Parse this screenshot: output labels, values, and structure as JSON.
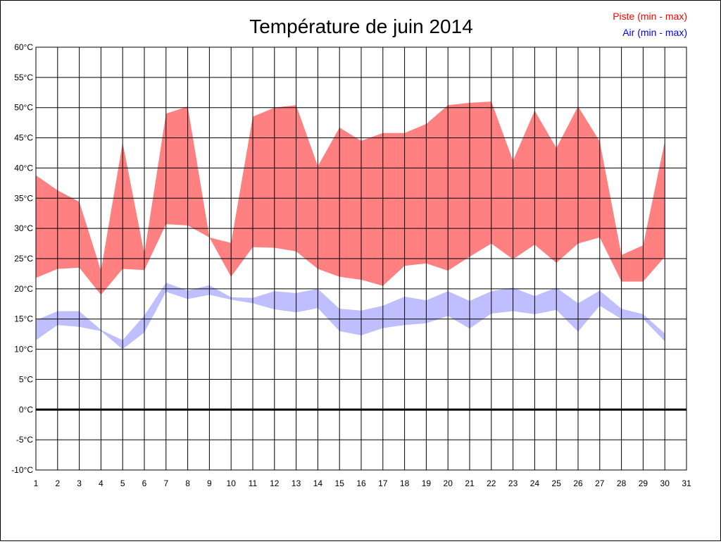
{
  "chart_data": {
    "type": "area",
    "title": "Température de juin 2014",
    "xlabel": "",
    "ylabel": "",
    "unit": "°C",
    "x": [
      1,
      2,
      3,
      4,
      5,
      6,
      7,
      8,
      9,
      10,
      11,
      12,
      13,
      14,
      15,
      16,
      17,
      18,
      19,
      20,
      21,
      22,
      23,
      24,
      25,
      26,
      27,
      28,
      29,
      30
    ],
    "xlim": [
      1,
      31
    ],
    "ylim": [
      -10,
      60
    ],
    "y_ticks": [
      60,
      55,
      50,
      45,
      40,
      35,
      30,
      25,
      20,
      15,
      10,
      5,
      0,
      -5,
      -10
    ],
    "y_tick_labels": [
      "60°C",
      "55°C",
      "50°C",
      "45°C",
      "40°C",
      "35°C",
      "30°C",
      "25°C",
      "20°C",
      "15°C",
      "10°C",
      "5°C",
      "0°C",
      "-5°C",
      "-10°C"
    ],
    "x_tick_labels": [
      "1",
      "2",
      "3",
      "4",
      "5",
      "6",
      "7",
      "8",
      "9",
      "10",
      "11",
      "12",
      "13",
      "14",
      "15",
      "16",
      "17",
      "18",
      "19",
      "20",
      "21",
      "22",
      "23",
      "24",
      "25",
      "26",
      "27",
      "28",
      "29",
      "30",
      "31"
    ],
    "grid": true,
    "legend_position": "top-right",
    "series": [
      {
        "name": "Piste (min - max)",
        "color": "#ff0000",
        "fill": "#ff8080",
        "min": [
          21.8,
          23.3,
          23.5,
          19.0,
          23.3,
          23.1,
          30.7,
          30.5,
          28.5,
          22.0,
          26.9,
          26.8,
          26.2,
          23.3,
          22.0,
          21.5,
          20.5,
          23.8,
          24.2,
          23.0,
          25.3,
          27.5,
          24.9,
          27.3,
          24.3,
          27.5,
          28.5,
          21.2,
          21.2,
          25.3
        ],
        "max": [
          38.8,
          36.3,
          34.4,
          23.0,
          44.2,
          25.8,
          49.0,
          50.2,
          28.5,
          27.6,
          48.5,
          50.0,
          50.4,
          40.3,
          46.7,
          44.5,
          45.8,
          45.8,
          47.3,
          50.4,
          50.8,
          51.0,
          41.2,
          49.5,
          43.3,
          50.2,
          44.4,
          25.6,
          27.2,
          44.4
        ]
      },
      {
        "name": "Air (min - max)",
        "color": "#0000ff",
        "fill": "#8080ff",
        "min": [
          11.5,
          14.0,
          13.7,
          13.0,
          10.0,
          12.8,
          19.5,
          18.3,
          19.0,
          18.2,
          17.6,
          16.6,
          16.1,
          16.8,
          13.0,
          12.3,
          13.5,
          14.0,
          14.3,
          15.5,
          13.4,
          15.9,
          16.3,
          15.8,
          16.5,
          12.9,
          17.2,
          15.0,
          15.0,
          11.3
        ],
        "max": [
          14.8,
          16.3,
          16.3,
          13.2,
          11.5,
          15.6,
          21.0,
          19.7,
          20.6,
          18.6,
          18.5,
          19.6,
          19.3,
          20.0,
          16.7,
          16.4,
          17.2,
          18.7,
          18.1,
          19.6,
          18.0,
          19.6,
          20.2,
          18.8,
          20.2,
          17.6,
          19.7,
          16.7,
          15.8,
          12.6
        ]
      }
    ]
  }
}
